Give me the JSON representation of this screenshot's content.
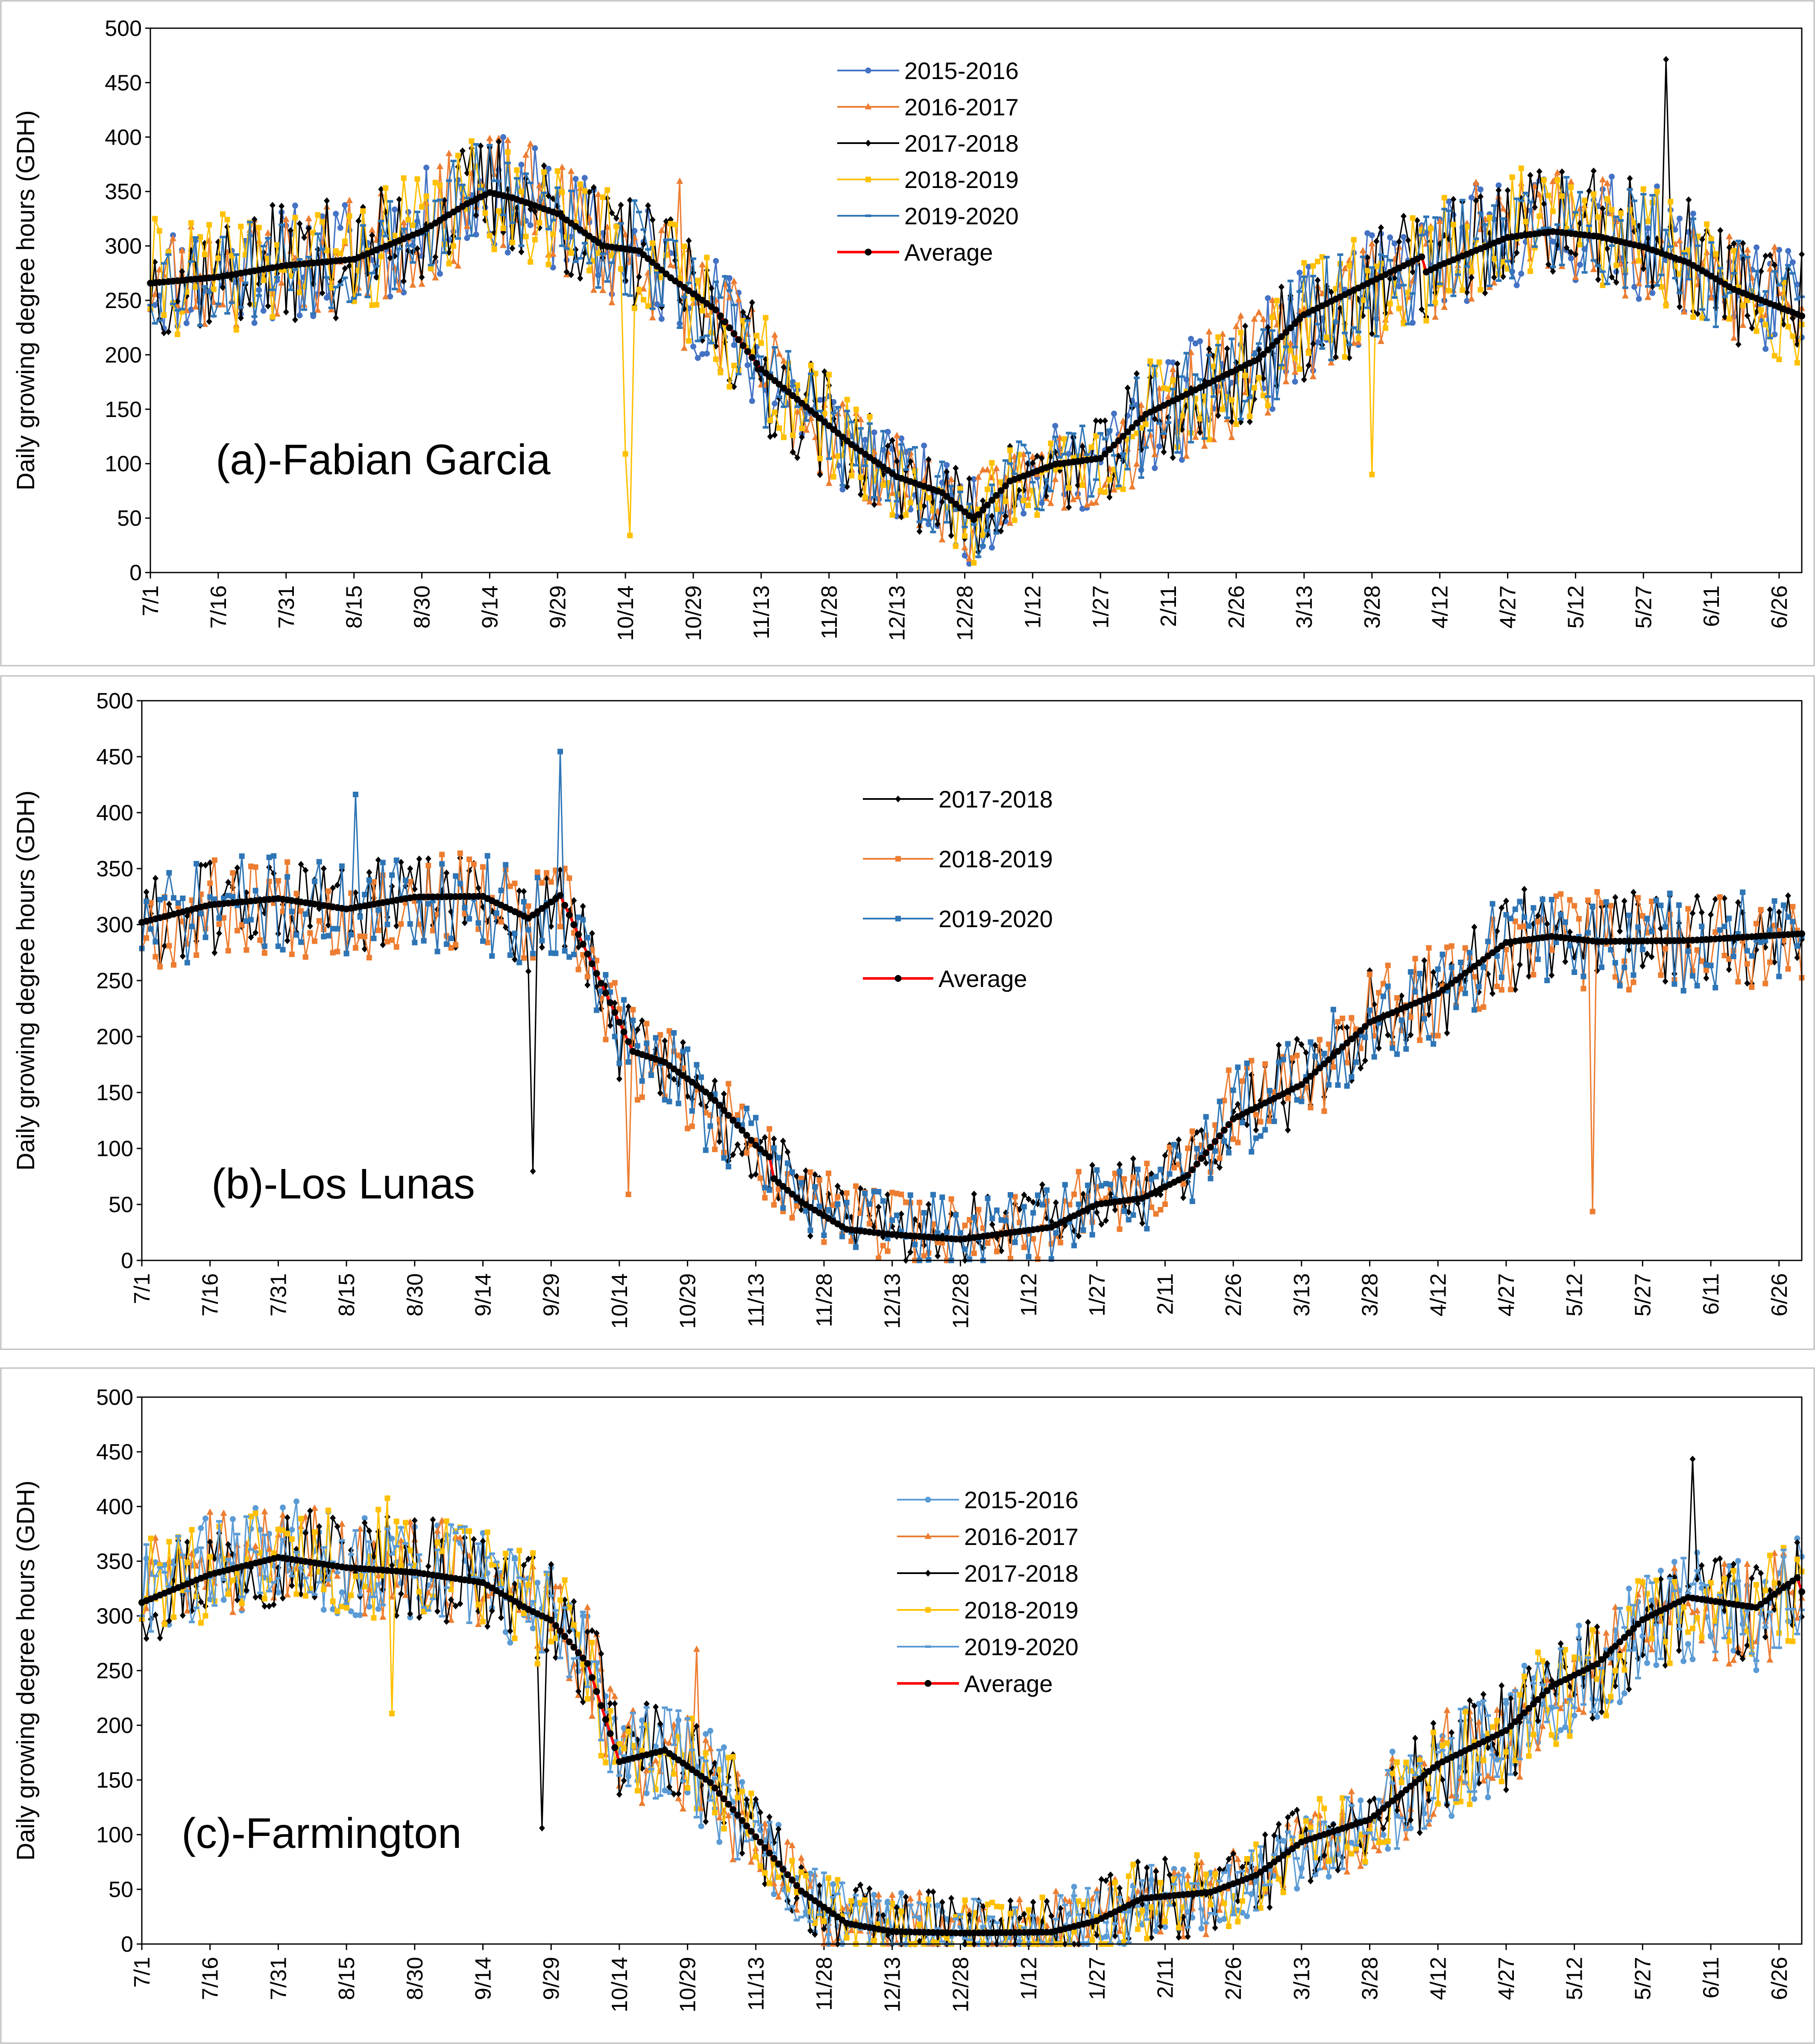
{
  "figure": {
    "colors": {
      "s2015": "#4472C4",
      "s2016": "#ED7D31",
      "s2017": "#000000",
      "s2018": "#FFC000",
      "s2019": "#2E75B6",
      "s2019c": "#5B9BD5",
      "average": "#FF0000",
      "averageMarker": "#000000"
    }
  },
  "chart_data": [
    {
      "type": "line",
      "id": "a",
      "site_label": "(a)-Fabian Garcia",
      "ylabel": "Daily growing degree hours (GDH)",
      "ylim": [
        0,
        500
      ],
      "yticks": [
        0,
        50,
        100,
        150,
        200,
        250,
        300,
        350,
        400,
        450,
        500
      ],
      "x_tick_labels": [
        "7/1",
        "7/16",
        "7/31",
        "8/15",
        "8/30",
        "9/14",
        "9/29",
        "10/14",
        "10/29",
        "11/13",
        "11/28",
        "12/13",
        "12/28",
        "1/12",
        "1/27",
        "2/11",
        "2/26",
        "3/13",
        "3/28",
        "4/12",
        "4/27",
        "5/12",
        "5/27",
        "6/11",
        "6/26"
      ],
      "legend": [
        "2015-2016",
        "2016-2017",
        "2017-2018",
        "2018-2019",
        "2019-2020",
        "Average"
      ],
      "average_profile": [
        [
          0,
          270
        ],
        [
          15,
          275
        ],
        [
          30,
          285
        ],
        [
          45,
          290
        ],
        [
          60,
          315
        ],
        [
          70,
          340
        ],
        [
          75,
          350
        ],
        [
          80,
          345
        ],
        [
          90,
          330
        ],
        [
          100,
          300
        ],
        [
          108,
          295
        ],
        [
          115,
          270
        ],
        [
          125,
          240
        ],
        [
          135,
          185
        ],
        [
          145,
          150
        ],
        [
          155,
          115
        ],
        [
          165,
          85
        ],
        [
          175,
          70
        ],
        [
          182,
          45
        ],
        [
          190,
          80
        ],
        [
          200,
          95
        ],
        [
          210,
          100
        ],
        [
          220,
          140
        ],
        [
          230,
          160
        ],
        [
          245,
          190
        ],
        [
          255,
          230
        ],
        [
          270,
          260
        ],
        [
          285,
          290
        ],
        [
          300,
          315
        ],
        [
          310,
          320
        ],
        [
          320,
          315
        ],
        [
          330,
          305
        ],
        [
          340,
          290
        ],
        [
          350,
          265
        ],
        [
          365,
          240
        ]
      ],
      "series": [
        {
          "name": "2015-2016",
          "colorKey": "s2015",
          "marker": "circle",
          "amp": 55,
          "seed": 11,
          "drops": [
            [
              112,
              -40
            ],
            [
              260,
              -80
            ]
          ]
        },
        {
          "name": "2016-2017",
          "colorKey": "s2016",
          "marker": "triangle",
          "amp": 55,
          "seed": 23,
          "drops": [
            [
              117,
              70
            ]
          ]
        },
        {
          "name": "2017-2018",
          "colorKey": "s2017",
          "marker": "diamond",
          "amp": 55,
          "seed": 37,
          "drops": [
            [
              335,
              140
            ]
          ]
        },
        {
          "name": "2018-2019",
          "colorKey": "s2018",
          "marker": "square",
          "amp": 55,
          "seed": 41,
          "drops": [
            [
              105,
              -210
            ],
            [
              106,
              -230
            ],
            [
              270,
              -200
            ]
          ]
        },
        {
          "name": "2019-2020",
          "colorKey": "s2019",
          "marker": "dash",
          "amp": 50,
          "seed": 53,
          "drops": []
        },
        {
          "name": "Average",
          "colorKey": "average",
          "marker": "circle",
          "amp": 8,
          "seed": 0,
          "drops": []
        }
      ]
    },
    {
      "type": "line",
      "id": "b",
      "site_label": "(b)-Los Lunas",
      "ylabel": "Daily growing degree hours (GDH)",
      "ylim": [
        0,
        500
      ],
      "yticks": [
        0,
        50,
        100,
        150,
        200,
        250,
        300,
        350,
        400,
        450,
        500
      ],
      "x_tick_labels": [
        "7/1",
        "7/16",
        "7/31",
        "8/15",
        "8/30",
        "9/14",
        "9/29",
        "10/14",
        "10/29",
        "11/13",
        "11/28",
        "12/13",
        "12/28",
        "1/12",
        "1/27",
        "2/11",
        "2/26",
        "3/13",
        "3/28",
        "4/12",
        "4/27",
        "5/12",
        "5/27",
        "6/11",
        "6/26"
      ],
      "legend": [
        "2017-2018",
        "2018-2019",
        "2019-2020",
        "Average"
      ],
      "average_profile": [
        [
          0,
          300
        ],
        [
          15,
          315
        ],
        [
          30,
          320
        ],
        [
          45,
          310
        ],
        [
          60,
          320
        ],
        [
          75,
          320
        ],
        [
          85,
          300
        ],
        [
          92,
          320
        ],
        [
          100,
          250
        ],
        [
          108,
          180
        ],
        [
          115,
          170
        ],
        [
          125,
          140
        ],
        [
          135,
          95
        ],
        [
          145,
          60
        ],
        [
          155,
          35
        ],
        [
          165,
          30
        ],
        [
          180,
          25
        ],
        [
          190,
          30
        ],
        [
          200,
          35
        ],
        [
          210,
          55
        ],
        [
          220,
          60
        ],
        [
          230,
          80
        ],
        [
          240,
          130
        ],
        [
          255,
          160
        ],
        [
          270,
          215
        ],
        [
          285,
          240
        ],
        [
          300,
          285
        ],
        [
          310,
          290
        ],
        [
          320,
          285
        ],
        [
          340,
          285
        ],
        [
          365,
          290
        ]
      ],
      "series": [
        {
          "name": "2017-2018",
          "colorKey": "s2017",
          "marker": "diamond",
          "amp": 45,
          "seed": 61,
          "drops": [
            [
              86,
              -230
            ]
          ]
        },
        {
          "name": "2018-2019",
          "colorKey": "s2018_b",
          "marker": "square",
          "amp": 45,
          "seed": 67,
          "drops": [
            [
              107,
              -120
            ],
            [
              319,
              -200
            ]
          ]
        },
        {
          "name": "2019-2020",
          "colorKey": "s2019",
          "marker": "square",
          "amp": 45,
          "seed": 71,
          "drops": [
            [
              92,
              130
            ],
            [
              47,
              140
            ]
          ]
        },
        {
          "name": "Average",
          "colorKey": "average",
          "marker": "circle",
          "amp": 8,
          "seed": 0,
          "drops": []
        }
      ]
    },
    {
      "type": "line",
      "id": "c",
      "site_label": "(c)-Farmington",
      "ylabel": "Daily growing degree hours (GDH)",
      "ylim": [
        0,
        500
      ],
      "yticks": [
        0,
        50,
        100,
        150,
        200,
        250,
        300,
        350,
        400,
        450,
        500
      ],
      "x_tick_labels": [
        "7/1",
        "7/16",
        "7/31",
        "8/15",
        "8/30",
        "9/14",
        "9/29",
        "10/14",
        "10/29",
        "11/13",
        "11/28",
        "12/13",
        "12/28",
        "1/12",
        "1/27",
        "2/11",
        "2/26",
        "3/13",
        "3/28",
        "4/12",
        "4/27",
        "5/12",
        "5/27",
        "6/11",
        "6/26"
      ],
      "legend": [
        "2015-2016",
        "2016-2017",
        "2017-2018",
        "2018-2019",
        "2019-2020",
        "Average"
      ],
      "average_profile": [
        [
          0,
          320
        ],
        [
          15,
          345
        ],
        [
          30,
          360
        ],
        [
          45,
          350
        ],
        [
          60,
          345
        ],
        [
          75,
          335
        ],
        [
          85,
          310
        ],
        [
          90,
          300
        ],
        [
          98,
          260
        ],
        [
          105,
          170
        ],
        [
          115,
          180
        ],
        [
          125,
          150
        ],
        [
          135,
          100
        ],
        [
          145,
          50
        ],
        [
          155,
          20
        ],
        [
          165,
          12
        ],
        [
          180,
          10
        ],
        [
          200,
          10
        ],
        [
          210,
          20
        ],
        [
          220,
          40
        ],
        [
          235,
          45
        ],
        [
          245,
          60
        ],
        [
          255,
          90
        ],
        [
          270,
          110
        ],
        [
          285,
          160
        ],
        [
          300,
          190
        ],
        [
          310,
          230
        ],
        [
          320,
          250
        ],
        [
          330,
          290
        ],
        [
          340,
          310
        ],
        [
          355,
          300
        ],
        [
          365,
          330
        ]
      ],
      "series": [
        {
          "name": "2015-2016",
          "colorKey": "s2019c",
          "marker": "circle",
          "amp": 50,
          "seed": 83,
          "drops": []
        },
        {
          "name": "2016-2017",
          "colorKey": "s2016",
          "marker": "triangle",
          "amp": 50,
          "seed": 89,
          "drops": [
            [
              122,
              120
            ]
          ]
        },
        {
          "name": "2017-2018",
          "colorKey": "s2017",
          "marker": "diamond",
          "amp": 50,
          "seed": 97,
          "drops": [
            [
              88,
              -150
            ],
            [
              341,
              150
            ]
          ]
        },
        {
          "name": "2018-2019",
          "colorKey": "s2018",
          "marker": "square",
          "amp": 50,
          "seed": 101,
          "drops": [
            [
              54,
              100
            ],
            [
              55,
              -100
            ]
          ]
        },
        {
          "name": "2019-2020",
          "colorKey": "s2019c",
          "marker": "dash",
          "amp": 45,
          "seed": 107,
          "drops": []
        },
        {
          "name": "Average",
          "colorKey": "average",
          "marker": "circle",
          "amp": 8,
          "seed": 0,
          "drops": []
        }
      ]
    }
  ]
}
